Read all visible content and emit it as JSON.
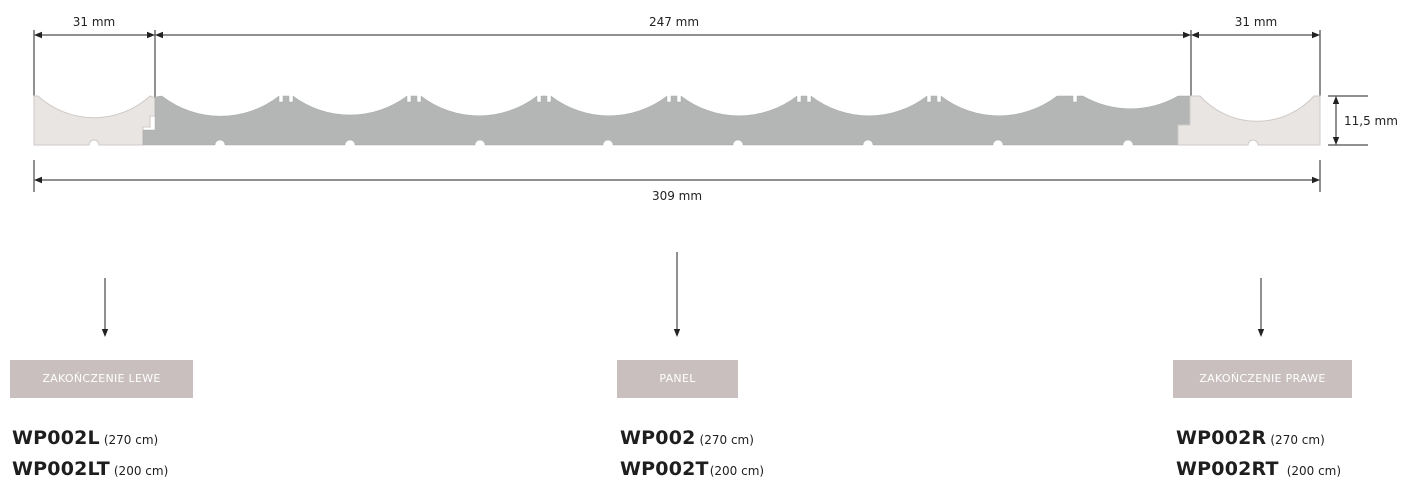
{
  "dimensions": {
    "left_end_width": "31 mm",
    "panel_width": "247 mm",
    "right_end_width": "31 mm",
    "total_width": "309 mm",
    "height": "11,5 mm"
  },
  "colors": {
    "end_cap_fill": "#e8e5e3",
    "panel_fill": "#b4b5b5",
    "label_background": "#c9bfbf",
    "dimension_lines": "#222222"
  },
  "components": [
    {
      "label": "ZAKOŃCZENIE LEWE",
      "codes": [
        {
          "code": "WP002L",
          "length": "(270 cm)"
        },
        {
          "code": "WP002LT",
          "length": "(200 cm)"
        }
      ]
    },
    {
      "label": "PANEL",
      "codes": [
        {
          "code": "WP002",
          "length": "(270 cm)"
        },
        {
          "code": "WP002T",
          "length": "(200 cm)"
        }
      ]
    },
    {
      "label": "ZAKOŃCZENIE PRAWE",
      "codes": [
        {
          "code": "WP002R",
          "length": "(270 cm)"
        },
        {
          "code": "WP002RT",
          "length": "(200 cm)"
        }
      ]
    }
  ]
}
